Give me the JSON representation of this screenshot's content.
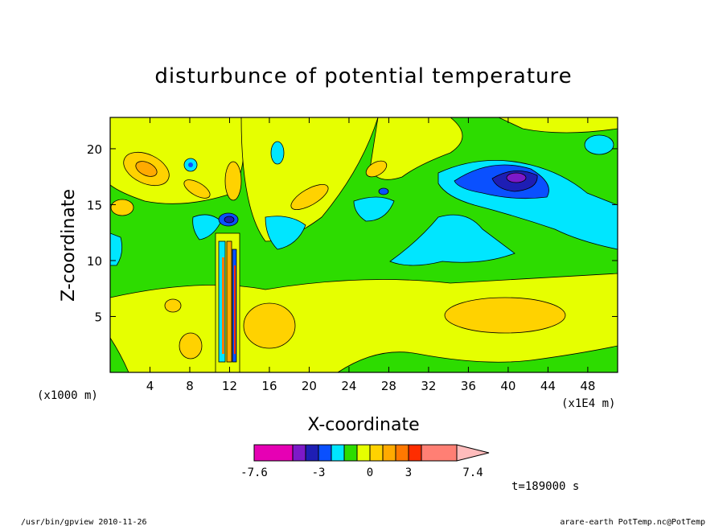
{
  "chart_data": {
    "type": "heatmap",
    "title": "disturbunce of potential temperature",
    "xlabel": "X-coordinate",
    "ylabel": "Z-coordinate",
    "x_unit_left": "(x1000 m)",
    "x_unit_right": "(x1E4 m)",
    "xlim": [
      0,
      51
    ],
    "ylim": [
      0,
      22.8
    ],
    "x_ticks": [
      4,
      8,
      12,
      16,
      20,
      24,
      28,
      32,
      36,
      40,
      44,
      48
    ],
    "y_ticks": [
      5,
      10,
      15,
      20
    ],
    "colorbar": {
      "colors": [
        "#e600b4",
        "#7d19c8",
        "#1e1eb4",
        "#0a50ff",
        "#00e6ff",
        "#2ddc00",
        "#e6ff00",
        "#ffd200",
        "#ffaa00",
        "#ff7800",
        "#ff2d00",
        "#ff7f74",
        "#ffbcbc"
      ],
      "tick_labels": [
        "-7.6",
        "-3",
        "0",
        "3",
        "7.4"
      ]
    },
    "time_label": "t=189000 s"
  },
  "footer": {
    "left": "/usr/bin/gpview   2010-11-26",
    "right": "arare-earth_PotTemp.nc@PotTemp"
  }
}
